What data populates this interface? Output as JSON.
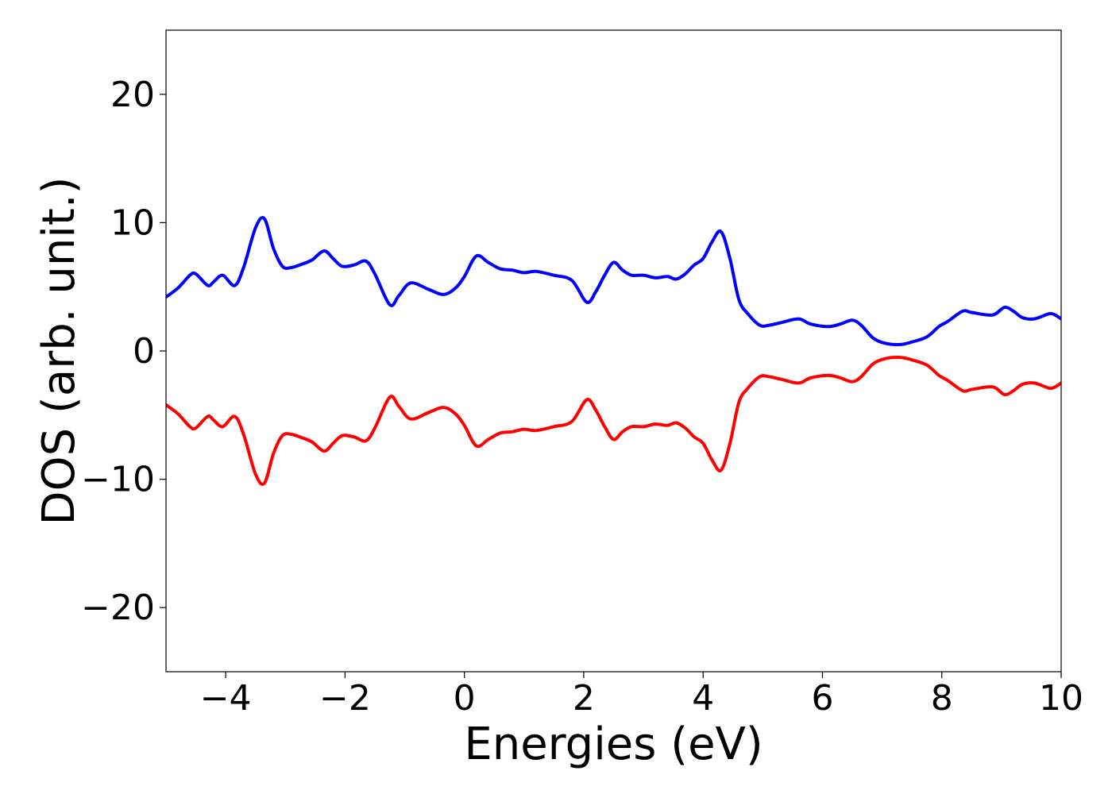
{
  "chart_data": {
    "type": "line",
    "xlabel": "Energies (eV)",
    "ylabel": "DOS (arb. unit.)",
    "xlim": [
      -5,
      10
    ],
    "ylim": [
      -25,
      25
    ],
    "xticks": [
      -4,
      -2,
      0,
      2,
      4,
      6,
      8,
      10
    ],
    "xtick_labels": [
      "−4",
      "−2",
      "0",
      "2",
      "4",
      "6",
      "8",
      "10"
    ],
    "yticks": [
      -20,
      -10,
      0,
      10,
      20
    ],
    "ytick_labels": [
      "−20",
      "−10",
      "0",
      "10",
      "20"
    ],
    "grid": false,
    "series": [
      {
        "color": "#0000ff",
        "x": [
          -5.0,
          -4.8,
          -4.6,
          -4.5,
          -4.3,
          -4.2,
          -4.05,
          -3.85,
          -3.7,
          -3.5,
          -3.35,
          -3.2,
          -3.05,
          -2.9,
          -2.7,
          -2.55,
          -2.35,
          -2.2,
          -2.05,
          -1.85,
          -1.65,
          -1.5,
          -1.25,
          -1.1,
          -0.9,
          -0.6,
          -0.35,
          -0.15,
          0.0,
          0.2,
          0.4,
          0.6,
          0.8,
          1.0,
          1.2,
          1.5,
          1.8,
          2.05,
          2.2,
          2.35,
          2.5,
          2.65,
          2.8,
          3.0,
          3.2,
          3.4,
          3.55,
          3.7,
          3.85,
          4.0,
          4.15,
          4.3,
          4.45,
          4.6,
          4.75,
          4.95,
          5.1,
          5.3,
          5.6,
          5.8,
          6.1,
          6.3,
          6.5,
          6.65,
          6.85,
          7.05,
          7.3,
          7.5,
          7.75,
          7.95,
          8.1,
          8.35,
          8.5,
          8.85,
          9.05,
          9.2,
          9.35,
          9.55,
          9.8,
          9.9,
          10.0
        ],
        "y": [
          4.2,
          4.9,
          5.9,
          6.0,
          5.1,
          5.4,
          5.9,
          5.1,
          6.5,
          9.6,
          10.3,
          8.0,
          6.6,
          6.5,
          6.8,
          7.1,
          7.8,
          7.2,
          6.6,
          6.7,
          7.0,
          6.0,
          3.6,
          4.3,
          5.3,
          4.8,
          4.4,
          4.9,
          5.8,
          7.4,
          6.9,
          6.4,
          6.3,
          6.1,
          6.2,
          5.9,
          5.5,
          3.8,
          4.6,
          5.9,
          6.9,
          6.3,
          5.9,
          5.9,
          5.7,
          5.8,
          5.6,
          6.0,
          6.7,
          7.2,
          8.5,
          9.3,
          7.2,
          4.0,
          2.9,
          2.0,
          2.0,
          2.2,
          2.5,
          2.1,
          1.9,
          2.1,
          2.4,
          2.0,
          1.0,
          0.6,
          0.5,
          0.7,
          1.1,
          1.9,
          2.3,
          3.1,
          3.0,
          2.8,
          3.4,
          3.1,
          2.6,
          2.5,
          2.9,
          2.8,
          2.5
        ]
      },
      {
        "color": "#ff0000",
        "x": [
          -5.0,
          -4.8,
          -4.6,
          -4.5,
          -4.3,
          -4.2,
          -4.05,
          -3.85,
          -3.7,
          -3.5,
          -3.35,
          -3.2,
          -3.05,
          -2.9,
          -2.7,
          -2.55,
          -2.35,
          -2.2,
          -2.05,
          -1.85,
          -1.65,
          -1.5,
          -1.25,
          -1.1,
          -0.9,
          -0.6,
          -0.35,
          -0.15,
          0.0,
          0.2,
          0.4,
          0.6,
          0.8,
          1.0,
          1.2,
          1.5,
          1.8,
          2.05,
          2.2,
          2.35,
          2.5,
          2.65,
          2.8,
          3.0,
          3.2,
          3.4,
          3.55,
          3.7,
          3.85,
          4.0,
          4.15,
          4.3,
          4.45,
          4.6,
          4.75,
          4.95,
          5.1,
          5.3,
          5.6,
          5.8,
          6.1,
          6.3,
          6.5,
          6.65,
          6.85,
          7.05,
          7.3,
          7.5,
          7.75,
          7.95,
          8.1,
          8.35,
          8.5,
          8.85,
          9.05,
          9.2,
          9.35,
          9.55,
          9.8,
          9.9,
          10.0
        ],
        "y": [
          -4.2,
          -4.9,
          -5.9,
          -6.0,
          -5.1,
          -5.4,
          -5.9,
          -5.1,
          -6.5,
          -9.6,
          -10.3,
          -8.0,
          -6.6,
          -6.5,
          -6.8,
          -7.1,
          -7.8,
          -7.2,
          -6.6,
          -6.7,
          -7.0,
          -6.0,
          -3.6,
          -4.3,
          -5.3,
          -4.8,
          -4.4,
          -4.9,
          -5.8,
          -7.4,
          -6.9,
          -6.4,
          -6.3,
          -6.1,
          -6.2,
          -5.9,
          -5.5,
          -3.8,
          -4.6,
          -5.9,
          -6.9,
          -6.3,
          -5.9,
          -5.9,
          -5.7,
          -5.8,
          -5.6,
          -6.0,
          -6.7,
          -7.2,
          -8.5,
          -9.3,
          -7.2,
          -4.0,
          -2.9,
          -2.0,
          -2.0,
          -2.2,
          -2.5,
          -2.1,
          -1.9,
          -2.1,
          -2.4,
          -2.0,
          -1.0,
          -0.6,
          -0.5,
          -0.7,
          -1.1,
          -1.9,
          -2.3,
          -3.1,
          -3.0,
          -2.8,
          -3.4,
          -3.1,
          -2.6,
          -2.5,
          -2.9,
          -2.8,
          -2.5
        ]
      }
    ]
  }
}
